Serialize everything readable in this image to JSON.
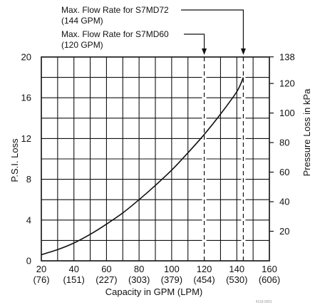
{
  "figure_id": "4118.0001",
  "chart_data": {
    "type": "line",
    "title": "",
    "xlabel": "Capacity in GPM (LPM)",
    "ylabel": "P.S.I. Loss",
    "y2label": "Pressure Loss in kPa",
    "xlim": [
      20,
      160
    ],
    "ylim": [
      0,
      20
    ],
    "grid": true,
    "x_ticks": [
      {
        "value": 20,
        "gpm": "20",
        "lpm": "(76)"
      },
      {
        "value": 40,
        "gpm": "40",
        "lpm": "(151)"
      },
      {
        "value": 60,
        "gpm": "60",
        "lpm": "(227)"
      },
      {
        "value": 80,
        "gpm": "80",
        "lpm": "(303)"
      },
      {
        "value": 100,
        "gpm": "100",
        "lpm": "(379)"
      },
      {
        "value": 120,
        "gpm": "120",
        "lpm": "(454)"
      },
      {
        "value": 140,
        "gpm": "140",
        "lpm": "(530)"
      },
      {
        "value": 160,
        "gpm": "160",
        "lpm": "(606)"
      }
    ],
    "y_ticks": [
      {
        "value": 0,
        "label": "0"
      },
      {
        "value": 4,
        "label": "4"
      },
      {
        "value": 8,
        "label": "8"
      },
      {
        "value": 12,
        "label": "12"
      },
      {
        "value": 16,
        "label": "16"
      },
      {
        "value": 20,
        "label": "20"
      }
    ],
    "y2_ticks": [
      {
        "kpa": 20,
        "label": "20"
      },
      {
        "kpa": 40,
        "label": "40"
      },
      {
        "kpa": 60,
        "label": "60"
      },
      {
        "kpa": 80,
        "label": "80"
      },
      {
        "kpa": 100,
        "label": "100"
      },
      {
        "kpa": 120,
        "label": "120"
      },
      {
        "kpa": 138,
        "label": "138"
      }
    ],
    "kpa_per_psi": 6.895,
    "series": [
      {
        "x": [
          20,
          30,
          40,
          50,
          60,
          70,
          80,
          90,
          100,
          110,
          120,
          130,
          140,
          144
        ],
        "values": [
          0.6,
          1.1,
          1.75,
          2.6,
          3.6,
          4.7,
          6.0,
          7.4,
          8.9,
          10.6,
          12.4,
          14.4,
          16.6,
          18.0
        ]
      }
    ],
    "annotations": [
      {
        "line1": "Max. Flow Rate for S7MD72",
        "line2": "(144 GPM)",
        "x": 144
      },
      {
        "line1": "Max. Flow Rate for S7MD60",
        "line2": "(120 GPM)",
        "x": 120
      }
    ]
  }
}
